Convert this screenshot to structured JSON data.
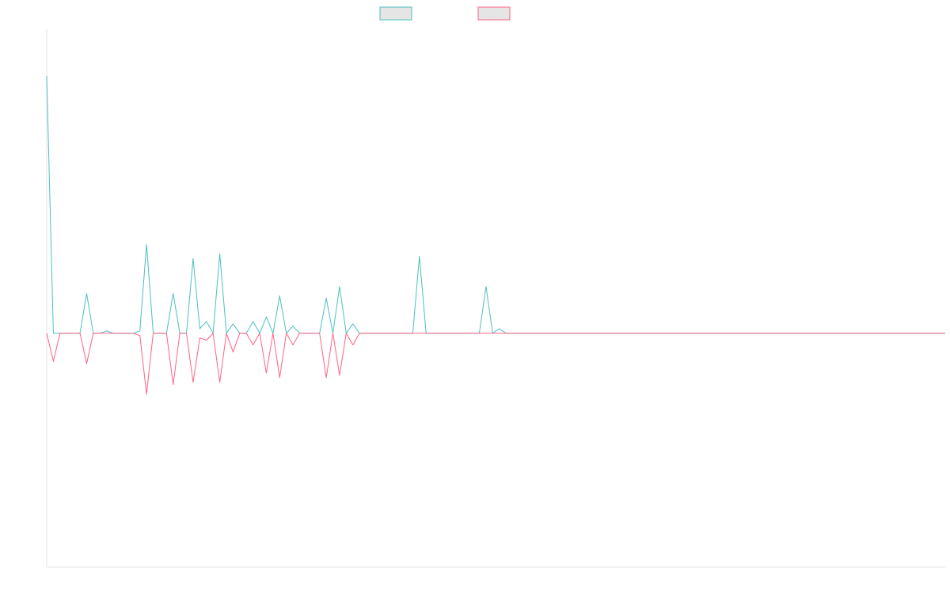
{
  "colors": {
    "series1": "#4bc0c0",
    "series2": "#ff6384",
    "legend_fill": "#e5e5e5",
    "axis": "#e6e6e6"
  },
  "chart_data": {
    "type": "line",
    "title": "",
    "xlabel": "",
    "ylabel": "",
    "grid": false,
    "legend": {
      "position": "top-center",
      "entries": [
        {
          "label": "",
          "color": "#4bc0c0"
        },
        {
          "label": "",
          "color": "#ff6384"
        }
      ]
    },
    "ylim": [
      -1.0,
      1.3
    ],
    "x": [
      0,
      1,
      2,
      3,
      4,
      5,
      6,
      7,
      8,
      9,
      10,
      11,
      12,
      13,
      14,
      15,
      16,
      17,
      18,
      19,
      20,
      21,
      22,
      23,
      24,
      25,
      26,
      27,
      28,
      29,
      30,
      31,
      32,
      33,
      34,
      35,
      36,
      37,
      38,
      39,
      40,
      41,
      42,
      43,
      44,
      45,
      46,
      47,
      48,
      49,
      50,
      51,
      52,
      53,
      54,
      55,
      56,
      57,
      58,
      59,
      60,
      61,
      62,
      63,
      64,
      65,
      66,
      67,
      68,
      69,
      70,
      71,
      72,
      73,
      74,
      75,
      76,
      77,
      78,
      79,
      80,
      81,
      82,
      83,
      84,
      85,
      86,
      87,
      88,
      89,
      90,
      91,
      92,
      93,
      94,
      95,
      96,
      97,
      98,
      99,
      100,
      101,
      102,
      103,
      104,
      105,
      106,
      107,
      108,
      109,
      110,
      111,
      112,
      113,
      114,
      115,
      116,
      117,
      118,
      119,
      120,
      121,
      122,
      123,
      124,
      125,
      126,
      127,
      128,
      129,
      130,
      131,
      132,
      133,
      134,
      135
    ],
    "series": [
      {
        "values": [
          1.1,
          0.0,
          0.0,
          0.0,
          0.0,
          0.0,
          0.17,
          0.0,
          0.0,
          0.01,
          0.0,
          0.0,
          0.0,
          0.0,
          0.01,
          0.38,
          0.0,
          0.0,
          0.0,
          0.17,
          0.0,
          0.0,
          0.32,
          0.02,
          0.05,
          0.0,
          0.34,
          0.0,
          0.04,
          0.0,
          0.0,
          0.05,
          0.0,
          0.07,
          0.0,
          0.16,
          0.0,
          0.03,
          0.0,
          0.0,
          0.0,
          0.0,
          0.15,
          0.0,
          0.2,
          0.0,
          0.04,
          0.0,
          0.0,
          0.0,
          0.0,
          0.0,
          0.0,
          0.0,
          0.0,
          0.0,
          0.33,
          0.0,
          0.0,
          0.0,
          0.0,
          0.0,
          0.0,
          0.0,
          0.0,
          0.0,
          0.2,
          0.0,
          0.02,
          0.0,
          0.0,
          0.0,
          0.0,
          0.0,
          0.0,
          0.0,
          0.0,
          0.0,
          0.0,
          0.0,
          0.0,
          0.0,
          0.0,
          0.0,
          0.0,
          0.0,
          0.0,
          0.0,
          0.0,
          0.0,
          0.0,
          0.0,
          0.0,
          0.0,
          0.0,
          0.0,
          0.0,
          0.0,
          0.0,
          0.0,
          0.0,
          0.0,
          0.0,
          0.0,
          0.0,
          0.0,
          0.0,
          0.0,
          0.0,
          0.0,
          0.0,
          0.0,
          0.0,
          0.0,
          0.0,
          0.0,
          0.0,
          0.0,
          0.0,
          0.0,
          0.0,
          0.0,
          0.0,
          0.0,
          0.0,
          0.0,
          0.0,
          0.0,
          0.0,
          0.0,
          0.0,
          0.0,
          0.0,
          0.0,
          0.0,
          0.0
        ]
      },
      {
        "values": [
          0.0,
          -0.12,
          0.0,
          0.0,
          0.0,
          0.0,
          -0.13,
          0.0,
          0.0,
          0.0,
          0.0,
          0.0,
          0.0,
          0.0,
          -0.01,
          -0.26,
          0.0,
          0.0,
          0.0,
          -0.22,
          0.0,
          0.0,
          -0.21,
          -0.02,
          -0.03,
          0.0,
          -0.21,
          0.0,
          -0.08,
          0.0,
          0.0,
          -0.05,
          0.0,
          -0.17,
          0.0,
          -0.19,
          0.0,
          -0.05,
          0.0,
          0.0,
          0.0,
          0.0,
          -0.19,
          0.0,
          -0.18,
          0.0,
          -0.05,
          0.0,
          0.0,
          0.0,
          0.0,
          0.0,
          0.0,
          0.0,
          0.0,
          0.0,
          0.0,
          0.0,
          0.0,
          0.0,
          0.0,
          0.0,
          0.0,
          0.0,
          0.0,
          0.0,
          0.0,
          0.0,
          0.0,
          0.0,
          0.0,
          0.0,
          0.0,
          0.0,
          0.0,
          0.0,
          0.0,
          0.0,
          0.0,
          0.0,
          0.0,
          0.0,
          0.0,
          0.0,
          0.0,
          0.0,
          0.0,
          0.0,
          0.0,
          0.0,
          0.0,
          0.0,
          0.0,
          0.0,
          0.0,
          0.0,
          0.0,
          0.0,
          0.0,
          0.0,
          0.0,
          0.0,
          0.0,
          0.0,
          0.0,
          0.0,
          0.0,
          0.0,
          0.0,
          0.0,
          0.0,
          0.0,
          0.0,
          0.0,
          0.0,
          0.0,
          0.0,
          0.0,
          0.0,
          0.0,
          0.0,
          0.0,
          0.0,
          0.0,
          0.0,
          0.0,
          0.0,
          0.0,
          0.0,
          0.0,
          0.0,
          0.0,
          0.0,
          0.0,
          0.0,
          0.0
        ]
      }
    ]
  }
}
